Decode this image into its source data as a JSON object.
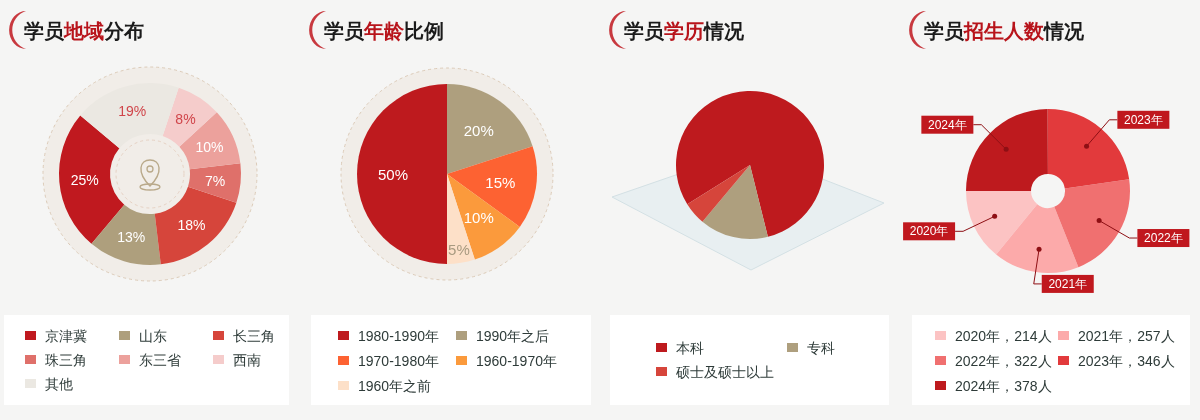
{
  "chart_data": [
    {
      "type": "donut",
      "title": "学员地域分布",
      "categories": [
        "京津冀",
        "山东",
        "长三角",
        "珠三角",
        "东三省",
        "西南",
        "其他"
      ],
      "values": [
        25,
        13,
        18,
        7,
        10,
        8,
        19
      ],
      "colors": [
        "#c0191f",
        "#ae9f7d",
        "#d6453b",
        "#df706a",
        "#eca19c",
        "#f5cccb",
        "#ebe8e2"
      ],
      "value_labels": [
        "25%",
        "13%",
        "18%",
        "7%",
        "10%",
        "8%",
        "19%"
      ],
      "legend": "bottom"
    },
    {
      "type": "pie",
      "title": "学员年龄比例",
      "categories": [
        "1980-1990年",
        "1990年之后",
        "1970-1980年",
        "1960-1970年",
        "1960年之前"
      ],
      "values": [
        50,
        20,
        15,
        10,
        5
      ],
      "colors": [
        "#be1a1e",
        "#ae9f7e",
        "#fd6232",
        "#fb9a3c",
        "#fde0c8"
      ],
      "value_labels": [
        "50%",
        "20%",
        "15%",
        "10%",
        "5%"
      ],
      "legend": "bottom"
    },
    {
      "type": "pie",
      "title": "学员学历情况",
      "categories": [
        "本科",
        "专科",
        "硕士及硕士以上"
      ],
      "values": [
        80,
        15,
        5
      ],
      "colors": [
        "#be1a1e",
        "#ae9f7e",
        "#d6453b"
      ],
      "legend": "bottom"
    },
    {
      "type": "donut",
      "title": "学员招生人数情况",
      "categories": [
        "2020年，214人",
        "2021年，257人",
        "2022年，322人",
        "2023年，346人",
        "2024年，378人"
      ],
      "values": [
        214,
        257,
        322,
        346,
        378
      ],
      "colors": [
        "#fcc3c3",
        "#fcaaaa",
        "#f07070",
        "#e23a3c",
        "#be1a1e"
      ],
      "annotations": [
        "2020年",
        "2021年",
        "2022年",
        "2023年",
        "2024年"
      ],
      "legend": "bottom"
    }
  ]
}
